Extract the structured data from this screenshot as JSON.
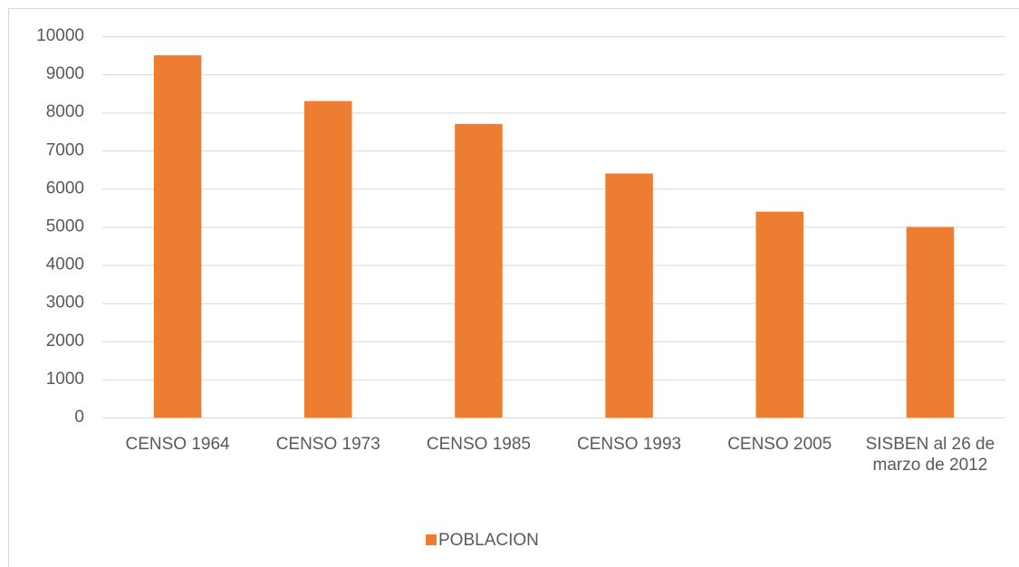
{
  "chart_data": {
    "type": "bar",
    "categories": [
      "CENSO 1964",
      "CENSO 1973",
      "CENSO 1985",
      "CENSO 1993",
      "CENSO 2005",
      "SISBEN al 26 de marzo de 2012"
    ],
    "series": [
      {
        "name": "POBLACION",
        "color": "#ED7D31",
        "values": [
          9500,
          8300,
          7700,
          6400,
          5400,
          5000
        ]
      }
    ],
    "ylim": [
      0,
      10000
    ],
    "yticks": [
      0,
      1000,
      2000,
      3000,
      4000,
      5000,
      6000,
      7000,
      8000,
      9000,
      10000
    ],
    "grid": true,
    "legend": "bottom"
  }
}
